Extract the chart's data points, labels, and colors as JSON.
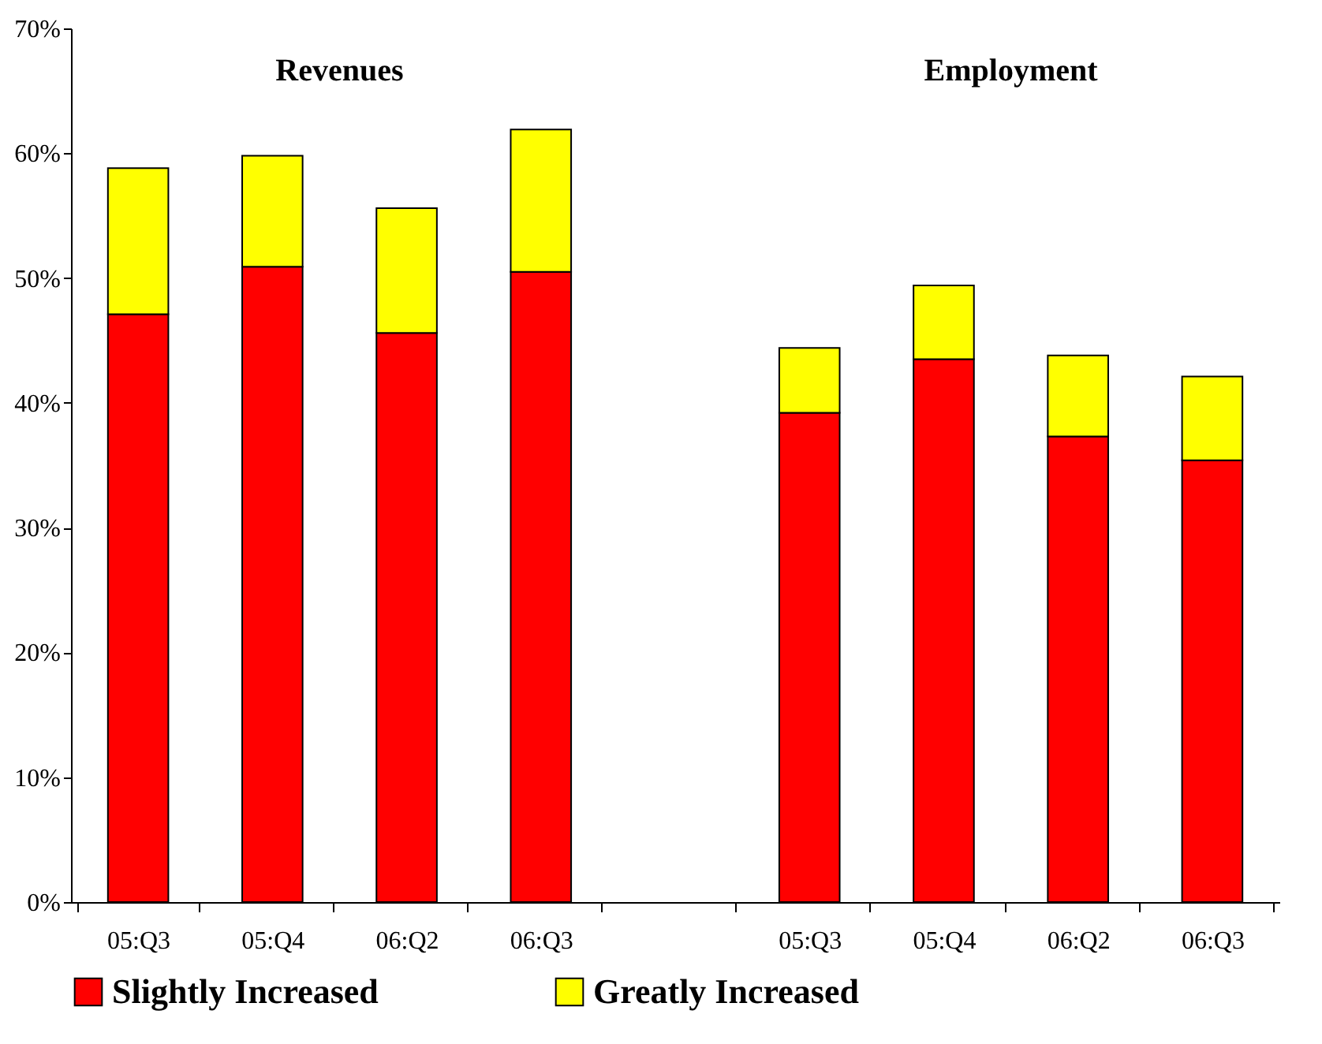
{
  "chart_data": {
    "type": "bar",
    "stacked": true,
    "categories": [
      "05:Q3",
      "05:Q4",
      "06:Q2",
      "06:Q3",
      null,
      "05:Q3",
      "05:Q4",
      "06:Q2",
      "06:Q3"
    ],
    "series": [
      {
        "name": "Slightly Increased",
        "color": "#ff0000",
        "values": [
          47.1,
          50.9,
          45.6,
          50.5,
          null,
          39.2,
          43.5,
          37.3,
          35.4
        ]
      },
      {
        "name": "Greatly Increased",
        "color": "#ffff00",
        "values": [
          11.7,
          8.9,
          10.0,
          11.4,
          null,
          5.2,
          5.9,
          6.5,
          6.7
        ]
      }
    ],
    "ylim": [
      0,
      70
    ],
    "yticks": [
      {
        "value": 0,
        "label": "0%"
      },
      {
        "value": 10,
        "label": "10%"
      },
      {
        "value": 20,
        "label": "20%"
      },
      {
        "value": 30,
        "label": "30%"
      },
      {
        "value": 40,
        "label": "40%"
      },
      {
        "value": 50,
        "label": "50%"
      },
      {
        "value": 60,
        "label": "60%"
      },
      {
        "value": 70,
        "label": "70%"
      }
    ],
    "annotations": [
      "Revenues",
      "Employment"
    ],
    "legend": "bottom"
  }
}
